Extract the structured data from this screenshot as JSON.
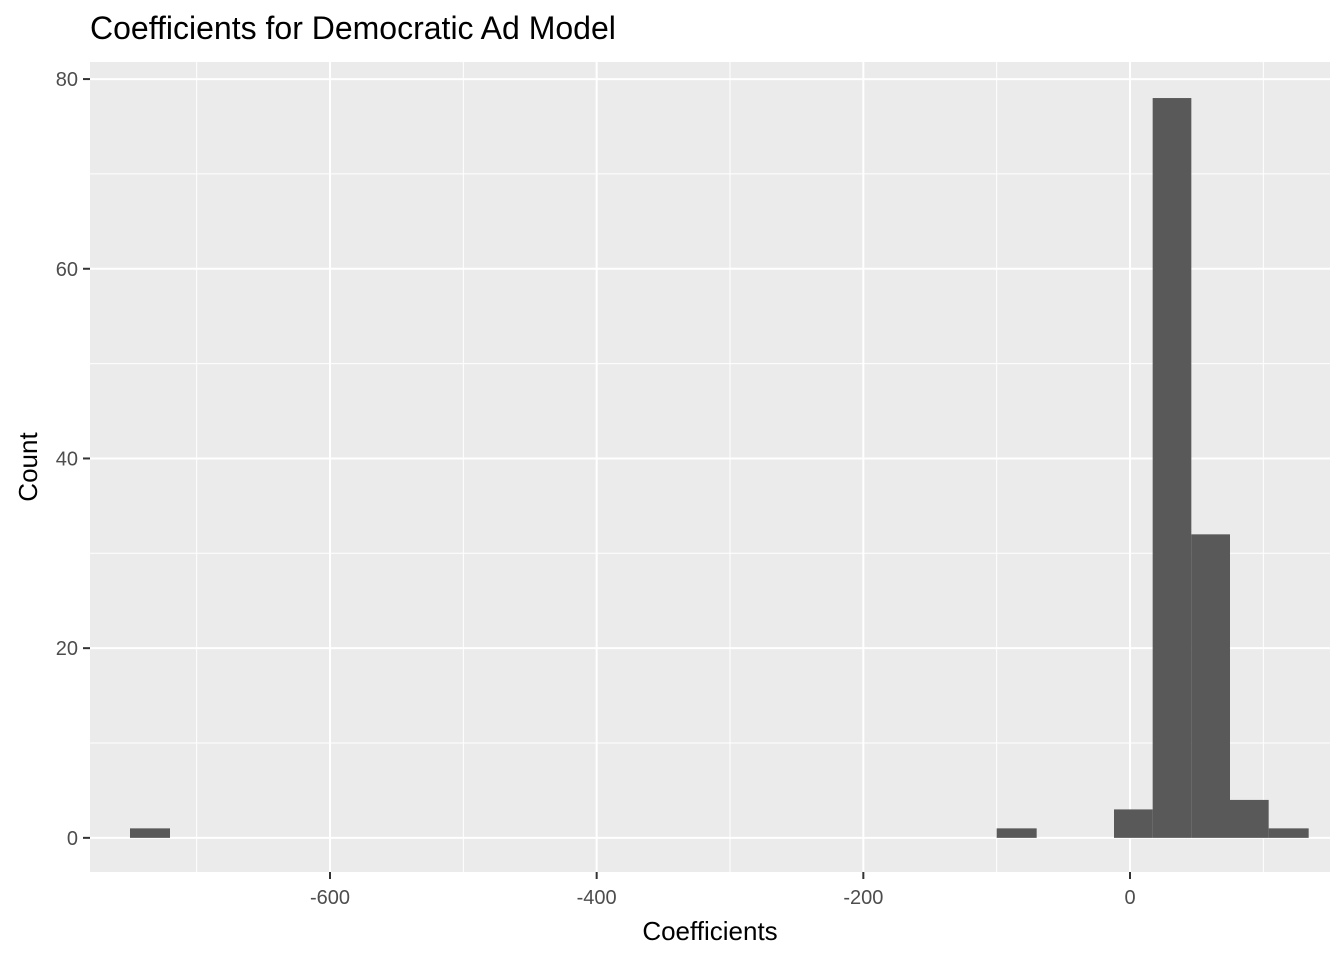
{
  "chart_data": {
    "type": "bar",
    "title": "Coefficients for Democratic Ad Model",
    "xlabel": "Coefficients",
    "ylabel": "Count",
    "xlim": [
      -780,
      150
    ],
    "ylim": [
      -3.6,
      81.8
    ],
    "x_ticks": [
      -600,
      -400,
      -200,
      0
    ],
    "x_tick_labels": [
      "-600",
      "-400",
      "-200",
      "0"
    ],
    "y_ticks": [
      0,
      20,
      40,
      60,
      80
    ],
    "y_tick_labels": [
      "0",
      "20",
      "40",
      "60",
      "80"
    ],
    "grid": true,
    "bins": [
      {
        "x0": -750,
        "x1": -720,
        "count": 1
      },
      {
        "x0": -100,
        "x1": -70,
        "count": 1
      },
      {
        "x0": -12,
        "x1": 17,
        "count": 3
      },
      {
        "x0": 17,
        "x1": 46,
        "count": 78
      },
      {
        "x0": 46,
        "x1": 75,
        "count": 32
      },
      {
        "x0": 75,
        "x1": 104,
        "count": 4
      },
      {
        "x0": 104,
        "x1": 134,
        "count": 1
      }
    ],
    "colors": {
      "panel_background": "#ebebeb",
      "grid_line": "#ffffff",
      "bar_fill": "#595959",
      "tick_label": "#4d4d4d"
    }
  }
}
